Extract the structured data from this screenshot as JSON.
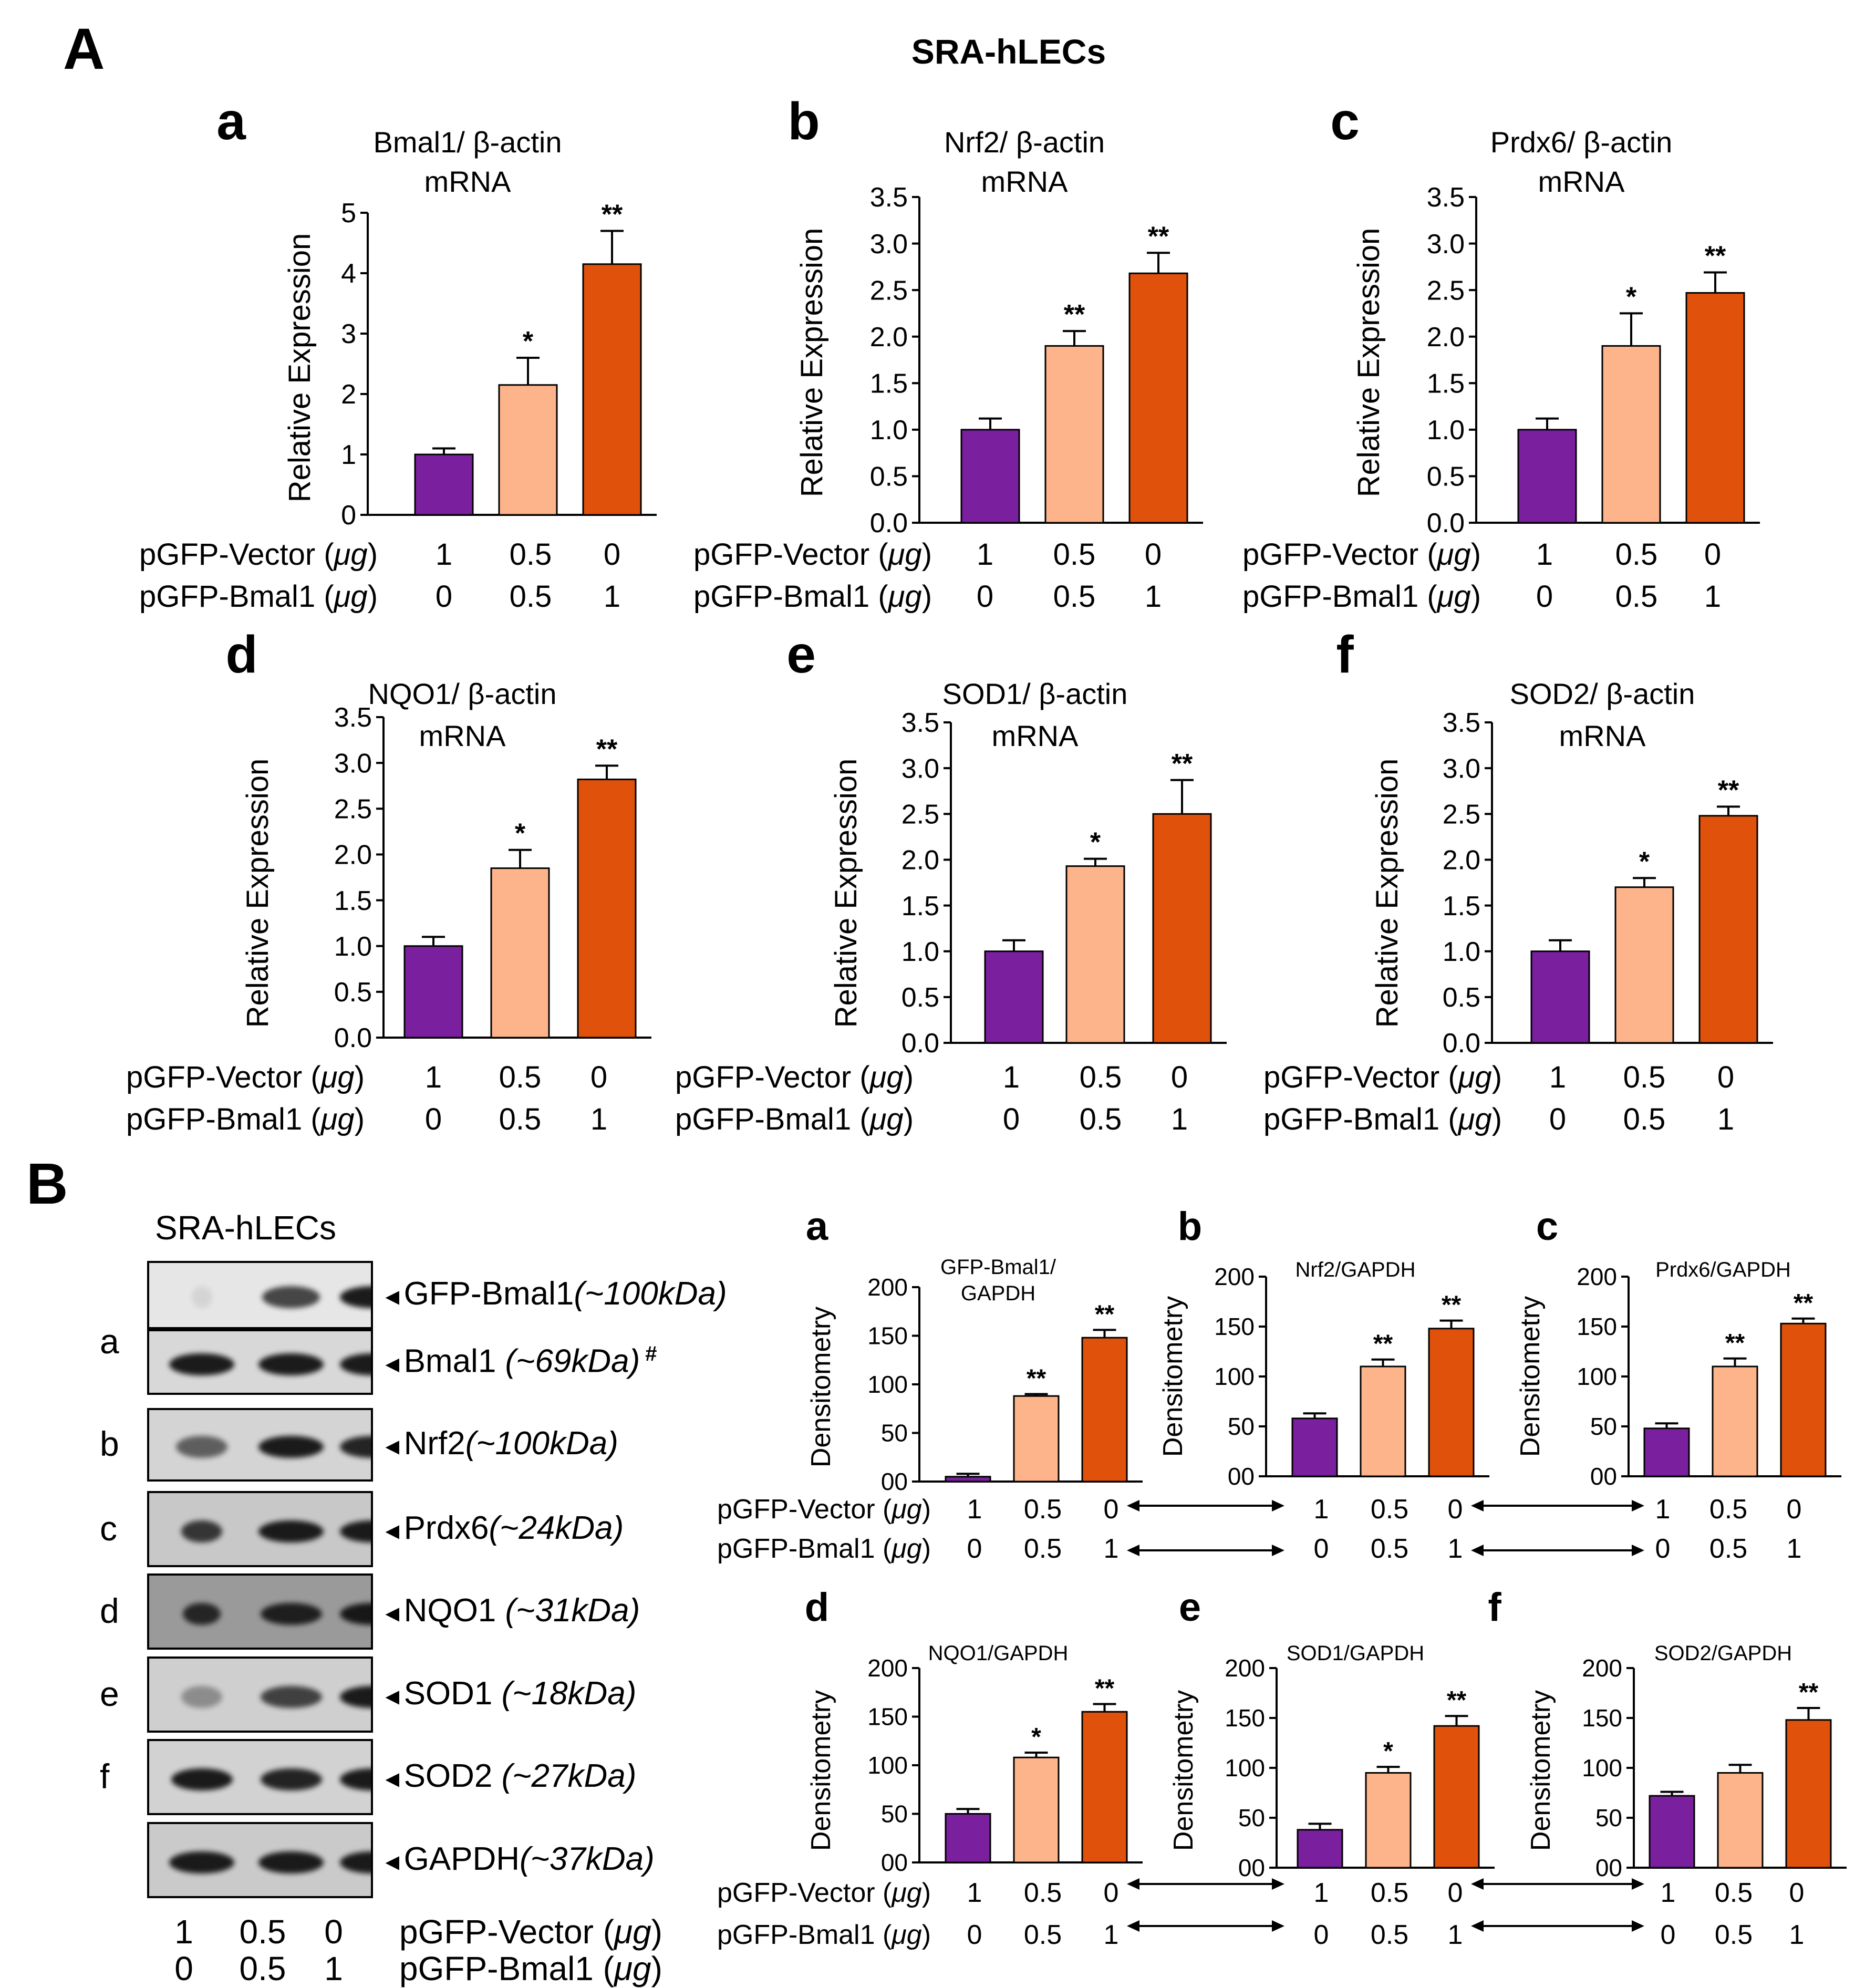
{
  "figure": {
    "panel_A_letter": "A",
    "panel_B_letter": "B",
    "title": "SRA-hLECs",
    "colors": {
      "vector": "#7a1f9e",
      "mix": "#fdb48a",
      "bmal1": "#e0520b"
    }
  },
  "chart_data": [
    {
      "id": "A-a",
      "type": "bar",
      "letter": "a",
      "title_line1": "Bmal1/ β-actin",
      "title_line2": "mRNA",
      "ylabel": "Relative Expression",
      "ylim": [
        0,
        5
      ],
      "yticks": [
        "0",
        "1",
        "2",
        "3",
        "4",
        "5"
      ],
      "ytick_values": [
        0,
        1,
        2,
        3,
        4,
        5
      ],
      "values": [
        1.0,
        2.15,
        4.15
      ],
      "errors": [
        0.1,
        0.45,
        0.55
      ],
      "significance": [
        "",
        "*",
        "**"
      ],
      "row1_label": "pGFP-Vector (μg)",
      "row1_values": [
        "1",
        "0.5",
        "0"
      ],
      "row2_label": "pGFP-Bmal1 (μg)",
      "row2_values": [
        "0",
        "0.5",
        "1"
      ]
    },
    {
      "id": "A-b",
      "type": "bar",
      "letter": "b",
      "title_line1": "Nrf2/ β-actin",
      "title_line2": "mRNA",
      "ylabel": "Relative Expression",
      "ylim": [
        0,
        3.5
      ],
      "yticks": [
        "0.0",
        "0.5",
        "1.0",
        "1.5",
        "2.0",
        "2.5",
        "3.0",
        "3.5"
      ],
      "ytick_values": [
        0,
        0.5,
        1,
        1.5,
        2,
        2.5,
        3,
        3.5
      ],
      "values": [
        1.0,
        1.9,
        2.68
      ],
      "errors": [
        0.12,
        0.16,
        0.22
      ],
      "significance": [
        "",
        "**",
        "**"
      ],
      "row1_label": "pGFP-Vector (μg)",
      "row1_values": [
        "1",
        "0.5",
        "0"
      ],
      "row2_label": "pGFP-Bmal1 (μg)",
      "row2_values": [
        "0",
        "0.5",
        "1"
      ]
    },
    {
      "id": "A-c",
      "type": "bar",
      "letter": "c",
      "title_line1": "Prdx6/ β-actin",
      "title_line2": "mRNA",
      "ylabel": "Relative Expression",
      "ylim": [
        0,
        3.5
      ],
      "yticks": [
        "0.0",
        "0.5",
        "1.0",
        "1.5",
        "2.0",
        "2.5",
        "3.0",
        "3.5"
      ],
      "ytick_values": [
        0,
        0.5,
        1,
        1.5,
        2,
        2.5,
        3,
        3.5
      ],
      "values": [
        1.0,
        1.9,
        2.47
      ],
      "errors": [
        0.12,
        0.35,
        0.22
      ],
      "significance": [
        "",
        "*",
        "**"
      ],
      "row1_label": "pGFP-Vector (μg)",
      "row1_values": [
        "1",
        "0.5",
        "0"
      ],
      "row2_label": "pGFP-Bmal1 (μg)",
      "row2_values": [
        "0",
        "0.5",
        "1"
      ]
    },
    {
      "id": "A-d",
      "type": "bar",
      "letter": "d",
      "title_line1": "NQO1/ β-actin",
      "title_line2": "mRNA",
      "ylabel": "Relative Expression",
      "ylim": [
        0,
        3.5
      ],
      "yticks": [
        "0.0",
        "0.5",
        "1.0",
        "1.5",
        "2.0",
        "2.5",
        "3.0",
        "3.5"
      ],
      "ytick_values": [
        0,
        0.5,
        1,
        1.5,
        2,
        2.5,
        3,
        3.5
      ],
      "values": [
        1.0,
        1.85,
        2.82
      ],
      "errors": [
        0.1,
        0.2,
        0.15
      ],
      "significance": [
        "",
        "*",
        "**"
      ],
      "row1_label": "pGFP-Vector (μg)",
      "row1_values": [
        "1",
        "0.5",
        "0"
      ],
      "row2_label": "pGFP-Bmal1 (μg)",
      "row2_values": [
        "0",
        "0.5",
        "1"
      ]
    },
    {
      "id": "A-e",
      "type": "bar",
      "letter": "e",
      "title_line1": "SOD1/ β-actin",
      "title_line2": "mRNA",
      "ylabel": "Relative Expression",
      "ylim": [
        0,
        3.5
      ],
      "yticks": [
        "0.0",
        "0.5",
        "1.0",
        "1.5",
        "2.0",
        "2.5",
        "3.0",
        "3.5"
      ],
      "ytick_values": [
        0,
        0.5,
        1,
        1.5,
        2,
        2.5,
        3,
        3.5
      ],
      "values": [
        1.0,
        1.93,
        2.5
      ],
      "errors": [
        0.12,
        0.08,
        0.37
      ],
      "significance": [
        "",
        "*",
        "**"
      ],
      "row1_label": "pGFP-Vector (μg)",
      "row1_values": [
        "1",
        "0.5",
        "0"
      ],
      "row2_label": "pGFP-Bmal1 (μg)",
      "row2_values": [
        "0",
        "0.5",
        "1"
      ]
    },
    {
      "id": "A-f",
      "type": "bar",
      "letter": "f",
      "title_line1": "SOD2/ β-actin",
      "title_line2": "mRNA",
      "ylabel": "Relative Expression",
      "ylim": [
        0,
        3.5
      ],
      "yticks": [
        "0.0",
        "0.5",
        "1.0",
        "1.5",
        "2.0",
        "2.5",
        "3.0",
        "3.5"
      ],
      "ytick_values": [
        0,
        0.5,
        1,
        1.5,
        2,
        2.5,
        3,
        3.5
      ],
      "values": [
        1.0,
        1.7,
        2.48
      ],
      "errors": [
        0.12,
        0.1,
        0.1
      ],
      "significance": [
        "",
        "*",
        "**"
      ],
      "row1_label": "pGFP-Vector (μg)",
      "row1_values": [
        "1",
        "0.5",
        "0"
      ],
      "row2_label": "pGFP-Bmal1 (μg)",
      "row2_values": [
        "0",
        "0.5",
        "1"
      ]
    },
    {
      "id": "B-a",
      "type": "bar",
      "letter": "a",
      "title_line1": "GFP-Bmal1/",
      "title_line2": "GAPDH",
      "ylabel": "Densitometry",
      "ylim": [
        0,
        200
      ],
      "yticks": [
        "00",
        "50",
        "100",
        "150",
        "200"
      ],
      "ytick_values": [
        0,
        50,
        100,
        150,
        200
      ],
      "values": [
        5,
        88,
        148
      ],
      "errors": [
        3,
        2,
        8
      ],
      "significance": [
        "",
        "**",
        "**"
      ],
      "row1_label": "pGFP-Vector (μg)",
      "row1_values": [
        "1",
        "0.5",
        "0"
      ],
      "row2_label": "pGFP-Bmal1 (μg)",
      "row2_values": [
        "0",
        "0.5",
        "1"
      ]
    },
    {
      "id": "B-b",
      "type": "bar",
      "letter": "b",
      "title_line1": "Nrf2/GAPDH",
      "title_line2": "",
      "ylabel": "Densitometry",
      "ylim": [
        0,
        200
      ],
      "yticks": [
        "00",
        "50",
        "100",
        "150",
        "200"
      ],
      "ytick_values": [
        0,
        50,
        100,
        150,
        200
      ],
      "values": [
        58,
        110,
        148
      ],
      "errors": [
        5,
        7,
        8
      ],
      "significance": [
        "",
        "**",
        "**"
      ],
      "row1_label": "",
      "row1_values": [
        "1",
        "0.5",
        "0"
      ],
      "row2_label": "",
      "row2_values": [
        "0",
        "0.5",
        "1"
      ]
    },
    {
      "id": "B-c",
      "type": "bar",
      "letter": "c",
      "title_line1": "Prdx6/GAPDH",
      "title_line2": "",
      "ylabel": "Densitometry",
      "ylim": [
        0,
        200
      ],
      "yticks": [
        "00",
        "50",
        "100",
        "150",
        "200"
      ],
      "ytick_values": [
        0,
        50,
        100,
        150,
        200
      ],
      "values": [
        48,
        110,
        153
      ],
      "errors": [
        5,
        8,
        5
      ],
      "significance": [
        "",
        "**",
        "**"
      ],
      "row1_label": "",
      "row1_values": [
        "1",
        "0.5",
        "0"
      ],
      "row2_label": "",
      "row2_values": [
        "0",
        "0.5",
        "1"
      ]
    },
    {
      "id": "B-d",
      "type": "bar",
      "letter": "d",
      "title_line1": "NQO1/GAPDH",
      "title_line2": "",
      "ylabel": "Densitometry",
      "ylim": [
        0,
        200
      ],
      "yticks": [
        "00",
        "50",
        "100",
        "150",
        "200"
      ],
      "ytick_values": [
        0,
        50,
        100,
        150,
        200
      ],
      "values": [
        50,
        108,
        155
      ],
      "errors": [
        5,
        5,
        8
      ],
      "significance": [
        "",
        "*",
        "**"
      ],
      "row1_label": "pGFP-Vector (μg)",
      "row1_values": [
        "1",
        "0.5",
        "0"
      ],
      "row2_label": "pGFP-Bmal1 (μg)",
      "row2_values": [
        "0",
        "0.5",
        "1"
      ]
    },
    {
      "id": "B-e",
      "type": "bar",
      "letter": "e",
      "title_line1": "SOD1/GAPDH",
      "title_line2": "",
      "ylabel": "Densitometry",
      "ylim": [
        0,
        200
      ],
      "yticks": [
        "00",
        "50",
        "100",
        "150",
        "200"
      ],
      "ytick_values": [
        0,
        50,
        100,
        150,
        200
      ],
      "values": [
        38,
        95,
        142
      ],
      "errors": [
        6,
        6,
        10
      ],
      "significance": [
        "",
        "*",
        "**"
      ],
      "row1_label": "",
      "row1_values": [
        "1",
        "0.5",
        "0"
      ],
      "row2_label": "",
      "row2_values": [
        "0",
        "0.5",
        "1"
      ]
    },
    {
      "id": "B-f",
      "type": "bar",
      "letter": "f",
      "title_line1": "SOD2/GAPDH",
      "title_line2": "",
      "ylabel": "Densitometry",
      "ylim": [
        0,
        200
      ],
      "yticks": [
        "00",
        "50",
        "100",
        "150",
        "200"
      ],
      "ytick_values": [
        0,
        50,
        100,
        150,
        200
      ],
      "values": [
        72,
        95,
        148
      ],
      "errors": [
        4,
        8,
        12
      ],
      "significance": [
        "",
        "",
        "**"
      ],
      "row1_label": "",
      "row1_values": [
        "1",
        "0.5",
        "0"
      ],
      "row2_label": "",
      "row2_values": [
        "0",
        "0.5",
        "1"
      ]
    }
  ],
  "blot": {
    "header": "SRA-hLECs",
    "rows": [
      {
        "side": "a",
        "label": "GFP-Bmal1",
        "size": "(~100kDa)",
        "mark": ""
      },
      {
        "side": "",
        "label": "Bmal1 ",
        "size": "(~69kDa)",
        "mark": "#"
      },
      {
        "side": "b",
        "label": "Nrf2",
        "size": "(~100kDa)",
        "mark": ""
      },
      {
        "side": "c",
        "label": "Prdx6",
        "size": "(~24kDa)",
        "mark": ""
      },
      {
        "side": "d",
        "label": "NQO1 ",
        "size": "(~31kDa)",
        "mark": ""
      },
      {
        "side": "e",
        "label": "SOD1 ",
        "size": "(~18kDa)",
        "mark": ""
      },
      {
        "side": "f",
        "label": "SOD2 ",
        "size": "(~27kDa)",
        "mark": ""
      },
      {
        "side": "",
        "label": "GAPDH",
        "size": "(~37kDa)",
        "mark": ""
      }
    ],
    "vector_values": [
      "1",
      "0.5",
      "0"
    ],
    "bmal1_values": [
      "0",
      "0.5",
      "1"
    ],
    "vector_label": "pGFP-Vector (μg)",
    "bmal1_label": "pGFP-Bmal1 (μg)"
  }
}
